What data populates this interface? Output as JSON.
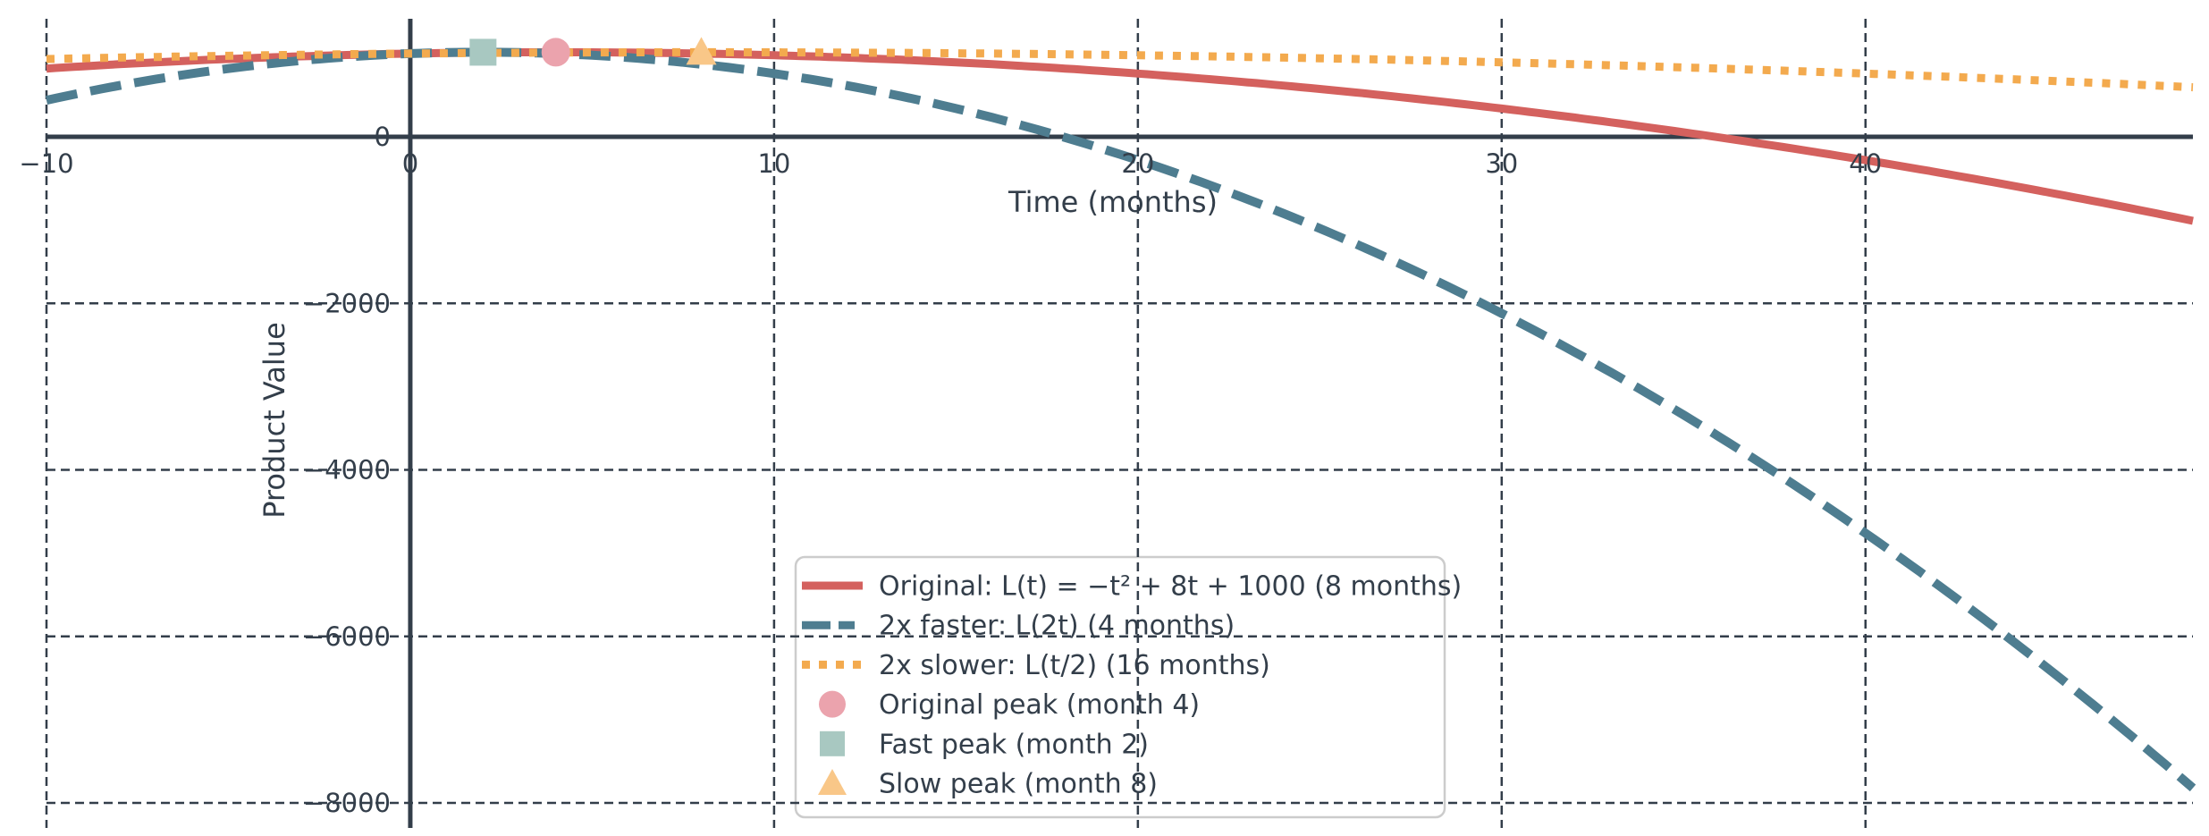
{
  "figure": {
    "background": "#ffffff",
    "text_color": "#333e4a",
    "grid_color": "#333e4a",
    "spine_color": "#333e4a",
    "legend_border_color": "#cccccc",
    "legend_background": "#ffffff"
  },
  "chart_data": {
    "type": "line",
    "title": "",
    "xlabel": "Time (months)",
    "ylabel": "Product Value",
    "xlim": [
      -10,
      49
    ],
    "ylim": [
      -8300,
      1418
    ],
    "x_ticks": [
      -10,
      0,
      10,
      20,
      30,
      40
    ],
    "y_ticks": [
      0,
      -2000,
      -4000,
      -6000,
      -8000
    ],
    "grid": true,
    "grid_style": "dashed",
    "legend_position": "lower-center-left",
    "series": [
      {
        "name": "Original: L(t) = −t² + 8t + 1000 (8 months)",
        "style": "solid",
        "color": "#d4615e",
        "coeffs": [
          -1,
          8,
          1000
        ],
        "x_range": [
          -10,
          49
        ],
        "peak": {
          "x": 4,
          "y": 1016
        }
      },
      {
        "name": "2x faster: L(2t) (4 months)",
        "style": "dashed",
        "color": "#4e7d90",
        "coeffs": [
          -4,
          16,
          1000
        ],
        "x_range": [
          -10,
          49
        ],
        "peak": {
          "x": 2,
          "y": 1016
        }
      },
      {
        "name": "2x slower: L(t/2) (16 months)",
        "style": "dotted",
        "color": "#f3aa4e",
        "coeffs": [
          -0.25,
          4,
          1000
        ],
        "x_range": [
          -10,
          49
        ],
        "peak": {
          "x": 8,
          "y": 1016
        }
      }
    ],
    "markers": [
      {
        "name": "Original peak (month 4)",
        "shape": "circle",
        "color": "#eba3ad",
        "x": 4,
        "y": 1016
      },
      {
        "name": "Fast peak (month 2)",
        "shape": "square",
        "color": "#a8c8c1",
        "x": 2,
        "y": 1016
      },
      {
        "name": "Slow peak (month 8)",
        "shape": "triangle",
        "color": "#f9c788",
        "x": 8,
        "y": 1016
      }
    ]
  }
}
